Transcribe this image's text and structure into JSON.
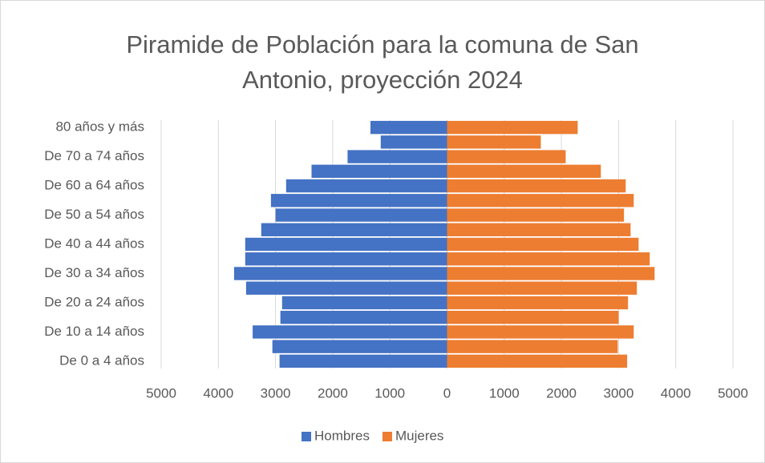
{
  "chart_data": {
    "type": "pyramid",
    "title": "Piramide de Población para la comuna de San Antonio, proyección 2024",
    "categories": [
      "De 0 a 4 años",
      null,
      "De 10 a 14 años",
      null,
      "De 20 a 24 años",
      null,
      "De 30 a 34 años",
      null,
      "De 40 a 44 años",
      null,
      "De 50 a 54 años",
      null,
      "De 60 a 64 años",
      null,
      "De 70 a 74 años",
      null,
      "80 años y más"
    ],
    "series": [
      {
        "name": "Hombres",
        "color": "#4472c4",
        "values": [
          -2930,
          -3055,
          -3400,
          -2915,
          -2885,
          -3515,
          -3725,
          -3530,
          -3530,
          -3250,
          -3000,
          -3080,
          -2815,
          -2370,
          -1740,
          -1160,
          -1340
        ]
      },
      {
        "name": "Mujeres",
        "color": "#ed7d31",
        "values": [
          3150,
          2985,
          3265,
          3000,
          3165,
          3320,
          3630,
          3545,
          3350,
          3210,
          3095,
          3265,
          3125,
          2690,
          2075,
          1640,
          2285
        ]
      }
    ],
    "xlim": [
      -5000,
      5000
    ],
    "xticks": [
      {
        "value": -5000,
        "label": "5000"
      },
      {
        "value": -4000,
        "label": "4000"
      },
      {
        "value": -3000,
        "label": "3000"
      },
      {
        "value": -2000,
        "label": "2000"
      },
      {
        "value": -1000,
        "label": "1000"
      },
      0,
      1000,
      2000,
      3000,
      4000,
      5000
    ],
    "grid": true,
    "legend": "bottom"
  }
}
